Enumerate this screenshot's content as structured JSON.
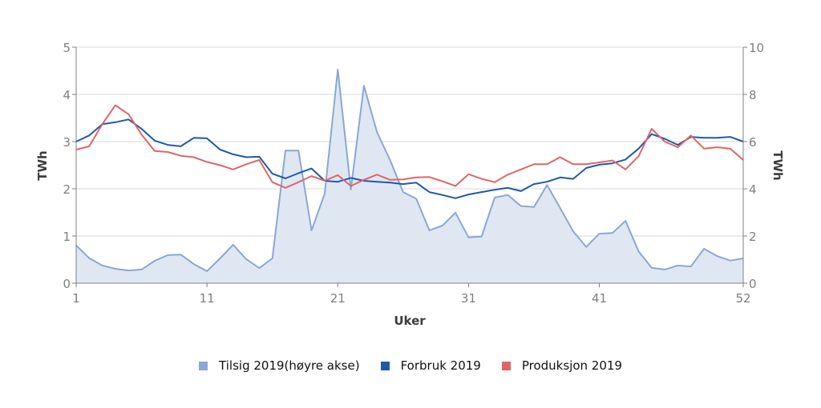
{
  "chart_data": {
    "type": "line",
    "title": "",
    "xlabel": "Uker",
    "ylabel": "TWh",
    "ylabel_right": "TWh",
    "xlim": [
      1,
      52
    ],
    "ylim": [
      0,
      5
    ],
    "ylim_right": [
      0,
      10
    ],
    "x_ticks": [
      1,
      11,
      21,
      31,
      41,
      52
    ],
    "y_ticks": [
      0,
      1,
      2,
      3,
      4,
      5
    ],
    "y_ticks_right": [
      0,
      2,
      4,
      6,
      8,
      10
    ],
    "grid": true,
    "legend_position": "bottom",
    "x": [
      1,
      2,
      3,
      4,
      5,
      6,
      7,
      8,
      9,
      10,
      11,
      12,
      13,
      14,
      15,
      16,
      17,
      18,
      19,
      20,
      21,
      22,
      23,
      24,
      25,
      26,
      27,
      28,
      29,
      30,
      31,
      32,
      33,
      34,
      35,
      36,
      37,
      38,
      39,
      40,
      41,
      42,
      43,
      44,
      45,
      46,
      47,
      48,
      49,
      50,
      51,
      52
    ],
    "series": [
      {
        "name": "Tilsig 2019(høyre akse)",
        "axis": "right",
        "style": "area",
        "color": "#8aa8d3",
        "values": [
          1.6,
          1.06,
          0.75,
          0.61,
          0.54,
          0.58,
          0.95,
          1.19,
          1.21,
          0.81,
          0.51,
          1.05,
          1.63,
          1.02,
          0.64,
          1.05,
          5.62,
          5.62,
          2.24,
          3.8,
          9.05,
          3.97,
          8.37,
          6.4,
          5.22,
          3.86,
          3.58,
          2.24,
          2.44,
          2.99,
          1.94,
          1.98,
          3.63,
          3.74,
          3.27,
          3.23,
          4.16,
          3.19,
          2.2,
          1.54,
          2.1,
          2.13,
          2.64,
          1.35,
          0.65,
          0.58,
          0.75,
          0.71,
          1.46,
          1.15,
          0.96,
          1.05
        ]
      },
      {
        "name": "Forbruk 2019",
        "axis": "left",
        "style": "line",
        "color": "#1f5aa8",
        "values": [
          3.0,
          3.13,
          3.37,
          3.41,
          3.47,
          3.27,
          3.02,
          2.93,
          2.9,
          3.08,
          3.07,
          2.83,
          2.73,
          2.67,
          2.68,
          2.32,
          2.22,
          2.33,
          2.43,
          2.17,
          2.15,
          2.23,
          2.17,
          2.15,
          2.13,
          2.1,
          2.13,
          1.93,
          1.87,
          1.8,
          1.88,
          1.93,
          1.98,
          2.02,
          1.95,
          2.1,
          2.15,
          2.24,
          2.21,
          2.44,
          2.51,
          2.54,
          2.62,
          2.85,
          3.16,
          3.06,
          2.93,
          3.1,
          3.08,
          3.08,
          3.1,
          3.0
        ]
      },
      {
        "name": "Produksjon 2019",
        "axis": "left",
        "style": "line",
        "color": "#e06666",
        "values": [
          2.83,
          2.9,
          3.37,
          3.77,
          3.58,
          3.15,
          2.8,
          2.78,
          2.7,
          2.67,
          2.57,
          2.5,
          2.41,
          2.52,
          2.61,
          2.14,
          2.02,
          2.14,
          2.27,
          2.17,
          2.29,
          2.06,
          2.19,
          2.3,
          2.19,
          2.2,
          2.24,
          2.25,
          2.16,
          2.06,
          2.31,
          2.21,
          2.14,
          2.3,
          2.41,
          2.52,
          2.52,
          2.67,
          2.52,
          2.52,
          2.56,
          2.6,
          2.41,
          2.69,
          3.27,
          3.0,
          2.88,
          3.13,
          2.85,
          2.88,
          2.85,
          2.61
        ]
      }
    ]
  },
  "legend": {
    "items": [
      {
        "label": "Tilsig 2019(høyre akse)",
        "color": "#8aa8d3"
      },
      {
        "label": "Forbruk 2019",
        "color": "#1f5aa8"
      },
      {
        "label": "Produksjon 2019",
        "color": "#e06666"
      }
    ]
  }
}
